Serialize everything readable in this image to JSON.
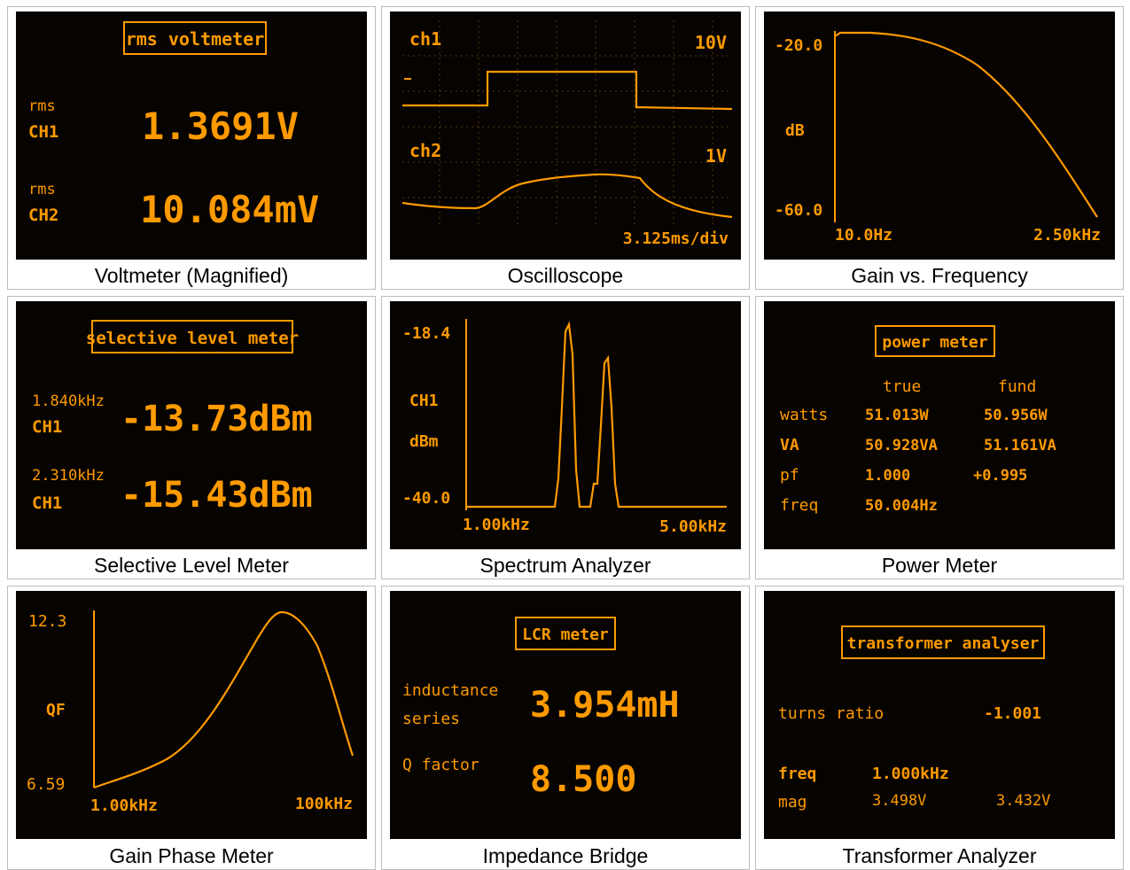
{
  "accent": "#ff9a00",
  "panels": {
    "voltmeter": {
      "caption": "Voltmeter (Magnified)",
      "title": "rms voltmeter",
      "row1_label_top": "rms",
      "row1_label_bottom": "CH1",
      "row1_value": "1.3691V",
      "row2_label_top": "rms",
      "row2_label_bottom": "CH2",
      "row2_value": "10.084mV"
    },
    "oscilloscope": {
      "caption": "Oscilloscope",
      "ch1": "ch1",
      "ch1_scale": "10V",
      "ch2": "ch2",
      "ch2_scale": "1V",
      "timebase": "3.125ms/div"
    },
    "gain_freq": {
      "caption": "Gain vs. Frequency",
      "y_top": "-20.0",
      "y_label": "dB",
      "y_bottom": "-60.0",
      "x_left": "10.0Hz",
      "x_right": "2.50kHz"
    },
    "selective": {
      "caption": "Selective Level Meter",
      "title": "selective level meter",
      "row1_freq": "1.840kHz",
      "row1_ch": "CH1",
      "row1_value": "-13.73dBm",
      "row2_freq": "2.310kHz",
      "row2_ch": "CH1",
      "row2_value": "-15.43dBm"
    },
    "spectrum": {
      "caption": "Spectrum Analyzer",
      "y_top": "-18.4",
      "ch": "CH1",
      "unit": "dBm",
      "y_bottom": "-40.0",
      "x_left": "1.00kHz",
      "x_right": "5.00kHz"
    },
    "power": {
      "caption": "Power Meter",
      "title": "power meter",
      "col_true": "true",
      "col_fund": "fund",
      "rows": [
        {
          "label": "watts",
          "true": "51.013W",
          "fund": "50.956W"
        },
        {
          "label": "VA",
          "true": "50.928VA",
          "fund": "51.161VA"
        },
        {
          "label": "pf",
          "true": "1.000",
          "fund": "+0.995"
        },
        {
          "label": "freq",
          "true": "50.004Hz",
          "fund": ""
        }
      ]
    },
    "gain_phase": {
      "caption": "Gain Phase Meter",
      "y_top": "12.3",
      "y_label": "QF",
      "y_bottom": "6.59",
      "x_left": "1.00kHz",
      "x_right": "100kHz"
    },
    "impedance": {
      "caption": "Impedance Bridge",
      "title": "LCR meter",
      "row1_label_top": "inductance",
      "row1_label_bottom": "series",
      "row1_value": "3.954mH",
      "row2_label": "Q factor",
      "row2_value": "8.500"
    },
    "transformer": {
      "caption": "Transformer Analyzer",
      "title": "transformer analyser",
      "turns_label": "turns ratio",
      "turns_value": "-1.001",
      "freq_label": "freq",
      "freq_value": "1.000kHz",
      "mag_label": "mag",
      "mag_value1": "3.498V",
      "mag_value2": "3.432V"
    }
  }
}
